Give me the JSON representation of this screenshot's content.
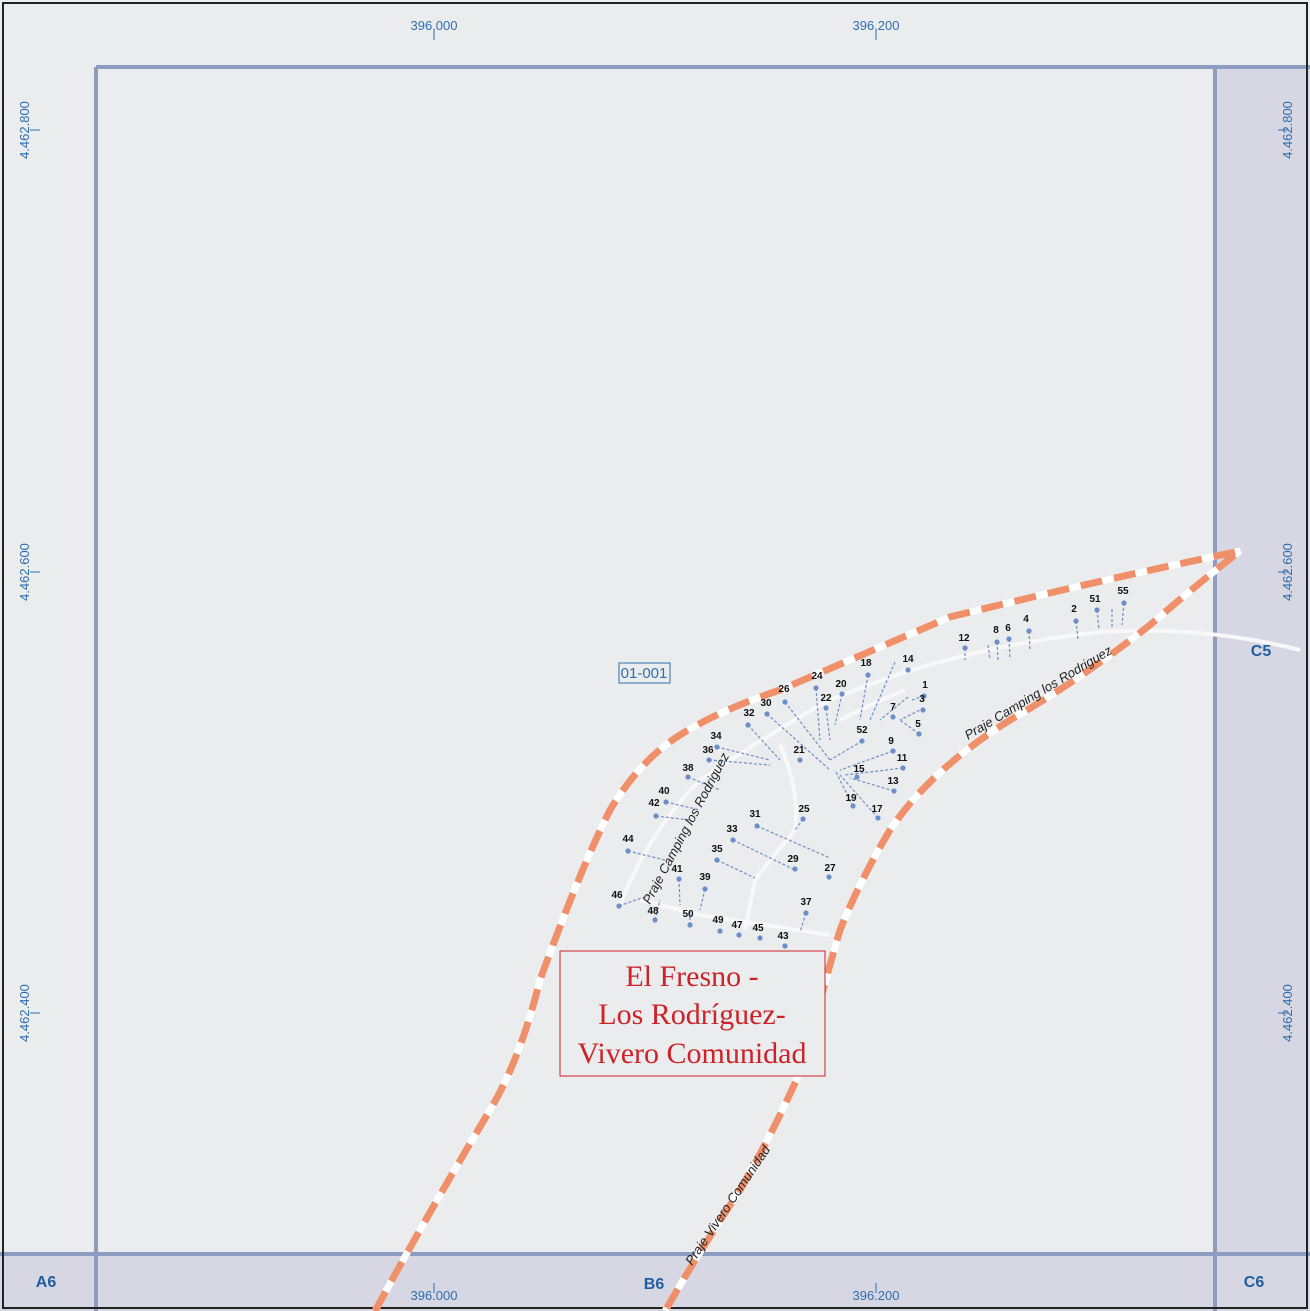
{
  "map": {
    "grid_easting": [
      "396.000",
      "396.200"
    ],
    "grid_northing": [
      "4.462.800",
      "4.462.600",
      "4.462.400"
    ],
    "sheets": [
      "C5",
      "A6",
      "B6",
      "C6"
    ],
    "sector_label": "01-001",
    "locality_name": [
      "El Fresno -",
      "Los Rodríguez-",
      "Vivero Comunidad"
    ],
    "road_labels": [
      "Praje Camping los Rodriguez",
      "Praje Camping los Rodriguez",
      "Praje Vivero Comunidad"
    ],
    "parcel_numbers": [
      "1",
      "2",
      "3",
      "4",
      "5",
      "6",
      "7",
      "8",
      "9",
      "11",
      "12",
      "13",
      "14",
      "15",
      "17",
      "18",
      "19",
      "20",
      "21",
      "22",
      "24",
      "25",
      "26",
      "27",
      "29",
      "30",
      "31",
      "32",
      "33",
      "34",
      "35",
      "36",
      "37",
      "38",
      "39",
      "40",
      "41",
      "42",
      "43",
      "44",
      "45",
      "46",
      "47",
      "48",
      "49",
      "50",
      "51",
      "52",
      "55"
    ],
    "colors": {
      "background": "#ebecee",
      "sheet_border": "#8d9cc0",
      "adjacent_sheet": "#d6d7e3",
      "boundary": "#f0906a",
      "parcel_point": "#6d8fc8",
      "locality_text": "#cc2228",
      "coordinate_text": "#2f6fb0"
    }
  }
}
